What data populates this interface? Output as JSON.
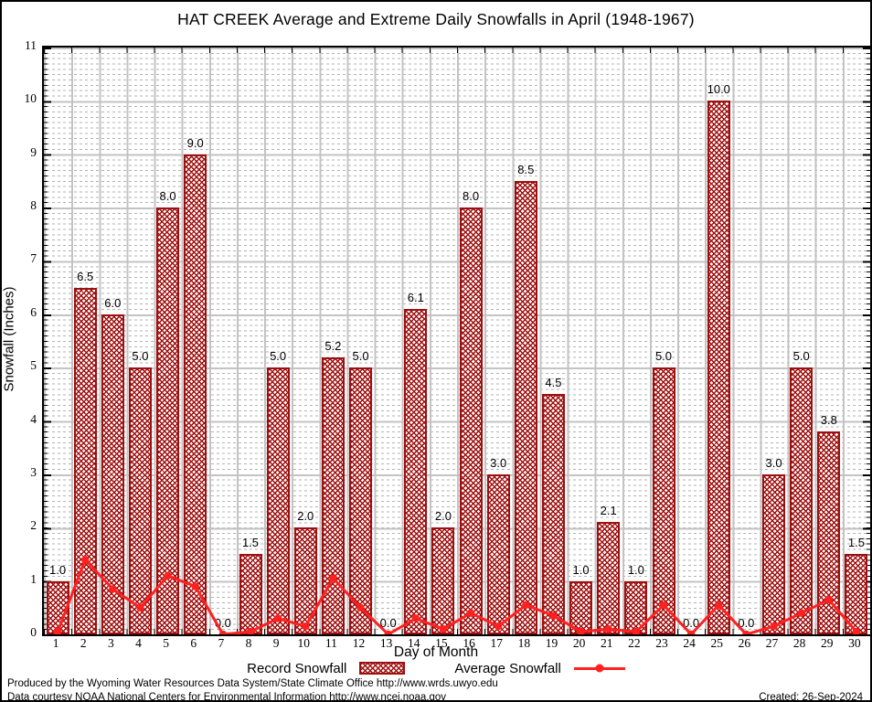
{
  "title": "HAT CREEK Average and Extreme Daily Snowfalls in April (1948-1967)",
  "y_axis": {
    "label": "Snowfall (Inches)",
    "ticks": [
      0,
      1,
      2,
      3,
      4,
      5,
      6,
      7,
      8,
      9,
      10,
      11
    ]
  },
  "x_axis": {
    "label": "Day of Month",
    "ticks": [
      1,
      2,
      3,
      4,
      5,
      6,
      7,
      8,
      9,
      10,
      11,
      12,
      13,
      14,
      15,
      16,
      17,
      18,
      19,
      20,
      21,
      22,
      23,
      24,
      25,
      26,
      27,
      28,
      29,
      30
    ]
  },
  "legend": {
    "record_label": "Record Snowfall",
    "average_label": "Average Snowfall"
  },
  "footer": {
    "produced": "Produced by the Wyoming Water Resources Data System/State Climate Office http://www.wrds.uwyo.edu",
    "courtesy": "Data courtesy NOAA National Centers for Environmental Information http://www.ncei.noaa.gov",
    "created": "Created: 26-Sep-2024"
  },
  "colors": {
    "bar": "#9e0f0f",
    "line": "#ff2020",
    "major_grid": "#c3c3c3",
    "minor_grid": "#b2b2b2",
    "axis": "#000000"
  },
  "chart_data": {
    "type": "bar",
    "title": "HAT CREEK Average and Extreme Daily Snowfalls in April (1948-1967)",
    "xlabel": "Day of Month",
    "ylabel": "Snowfall (Inches)",
    "ylim": [
      0,
      11
    ],
    "grid": true,
    "legend_position": "bottom",
    "categories": [
      1,
      2,
      3,
      4,
      5,
      6,
      7,
      8,
      9,
      10,
      11,
      12,
      13,
      14,
      15,
      16,
      17,
      18,
      19,
      20,
      21,
      22,
      23,
      24,
      25,
      26,
      27,
      28,
      29,
      30
    ],
    "series": [
      {
        "name": "Record Snowfall",
        "kind": "bar",
        "data_labels": true,
        "values": [
          1.0,
          6.5,
          6.0,
          5.0,
          8.0,
          9.0,
          0.0,
          1.5,
          5.0,
          2.0,
          5.2,
          5.0,
          0.0,
          6.1,
          2.0,
          8.0,
          3.0,
          8.5,
          4.5,
          1.0,
          2.1,
          1.0,
          5.0,
          0.0,
          10.0,
          0.0,
          3.0,
          5.0,
          3.8,
          1.5
        ]
      },
      {
        "name": "Average Snowfall",
        "kind": "line",
        "data_labels": false,
        "values": [
          0.05,
          1.4,
          0.85,
          0.5,
          1.1,
          0.9,
          0.0,
          0.05,
          0.3,
          0.15,
          1.05,
          0.5,
          0.0,
          0.3,
          0.1,
          0.4,
          0.15,
          0.55,
          0.35,
          0.05,
          0.1,
          0.05,
          0.55,
          0.0,
          0.55,
          0.0,
          0.15,
          0.4,
          0.65,
          0.05
        ]
      }
    ]
  }
}
